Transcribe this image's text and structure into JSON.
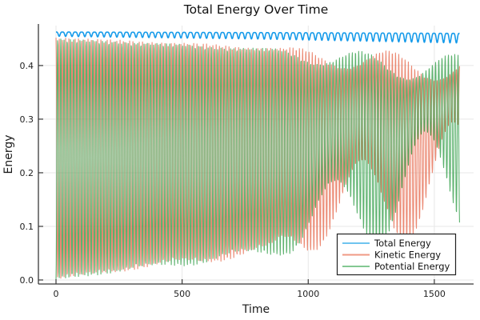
{
  "figure": {
    "background": "#ffffff",
    "axis_color": "#383838",
    "grid_color": "#e7e7e7",
    "tick_color": "#383838"
  },
  "chart_data": {
    "type": "line",
    "title": "Total Energy Over Time",
    "xlabel": "Time",
    "ylabel": "Energy",
    "xlim": [
      -69.8,
      1655.7
    ],
    "ylim": [
      -0.0075,
      0.4745
    ],
    "xticks": [
      0,
      500,
      1000,
      1500
    ],
    "yticks": [
      0.0,
      0.1,
      0.2,
      0.3,
      0.4
    ],
    "grid": true,
    "t_range": [
      0,
      1600
    ],
    "sample_step": 1.0,
    "legend": {
      "position": "bottom-right",
      "border_color": "#222222",
      "background": "#ffffff"
    },
    "series": [
      {
        "name": "Kinetic Energy",
        "color": "#e8745b",
        "legend_color": "#f09a84",
        "line_width": 1.1,
        "opacity": 0.85,
        "model": {
          "kind": "oscillator",
          "phase": "cos",
          "stroke_period": 12.7,
          "upper_keypoints": [
            [
              0,
              0.452
            ],
            [
              400,
              0.445
            ],
            [
              800,
              0.436
            ],
            [
              1200,
              0.429
            ],
            [
              1600,
              0.424
            ]
          ],
          "lower_keypoints": [
            [
              0,
              0.002
            ],
            [
              300,
              0.018
            ],
            [
              600,
              0.032
            ],
            [
              900,
              0.048
            ],
            [
              1200,
              0.062
            ],
            [
              1600,
              0.078
            ]
          ],
          "mod_amp_keypoints": [
            [
              0,
              0
            ],
            [
              850,
              0.02
            ],
            [
              1000,
              0.1
            ],
            [
              1200,
              0.16
            ],
            [
              1400,
              0.2
            ],
            [
              1600,
              0.22
            ]
          ],
          "mod_period": 370,
          "mod_phase": 0.0
        }
      },
      {
        "name": "Potential Energy",
        "color": "#3fa455",
        "legend_color": "#84c892",
        "line_width": 1.1,
        "opacity": 0.85,
        "model": {
          "kind": "oscillator",
          "phase": "sin",
          "stroke_period": 12.7,
          "upper_keypoints": [
            [
              0,
              0.45
            ],
            [
              400,
              0.442
            ],
            [
              800,
              0.433
            ],
            [
              1200,
              0.427
            ],
            [
              1600,
              0.421
            ]
          ],
          "lower_keypoints": [
            [
              0,
              0.001
            ],
            [
              300,
              0.016
            ],
            [
              600,
              0.03
            ],
            [
              900,
              0.046
            ],
            [
              1200,
              0.06
            ],
            [
              1600,
              0.075
            ]
          ],
          "mod_amp_keypoints": [
            [
              0,
              0
            ],
            [
              850,
              0.02
            ],
            [
              1000,
              0.1
            ],
            [
              1200,
              0.16
            ],
            [
              1400,
              0.2
            ],
            [
              1600,
              0.22
            ]
          ],
          "mod_period": 370,
          "mod_phase": 1.9
        }
      },
      {
        "name": "Total Energy",
        "color": "#169bea",
        "legend_color": "#6fc4ef",
        "line_width": 1.6,
        "opacity": 1.0,
        "model": {
          "kind": "total",
          "base_keypoints": [
            [
              0,
              0.4625
            ],
            [
              800,
              0.4615
            ],
            [
              1600,
              0.46
            ]
          ],
          "dip_depth_keypoints": [
            [
              0,
              0.008
            ],
            [
              800,
              0.012
            ],
            [
              1600,
              0.018
            ]
          ],
          "dip_period": 25.4,
          "dip_power": 2.5
        }
      }
    ],
    "legend_order": [
      "Total Energy",
      "Kinetic Energy",
      "Potential Energy"
    ]
  }
}
